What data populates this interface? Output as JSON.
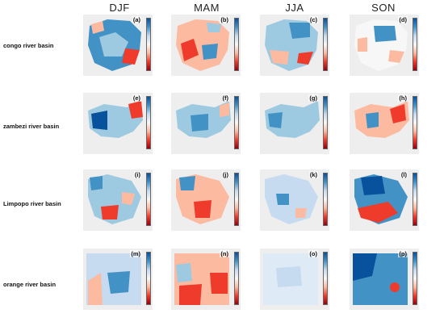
{
  "columns": [
    "DJF",
    "MAM",
    "JJA",
    "SON"
  ],
  "rows": [
    "congo river basin",
    "zambezi river basin",
    "Limpopo river basin",
    "orange river basin"
  ],
  "panels": [
    [
      "(a)",
      "(b)",
      "(c)",
      "(d)"
    ],
    [
      "(e)",
      "(f)",
      "(g)",
      "(h)"
    ],
    [
      "(i)",
      "(j)",
      "(k)",
      "(l)"
    ],
    [
      "(m)",
      "(n)",
      "(o)",
      "(p)"
    ]
  ],
  "colors": {
    "blue_dark": "#08519c",
    "blue": "#4292c6",
    "blue_light": "#9ecae1",
    "neutral": "#f7f7f7",
    "red_light": "#fcbba1",
    "red": "#ef3b2c",
    "red_dark": "#99000d"
  }
}
